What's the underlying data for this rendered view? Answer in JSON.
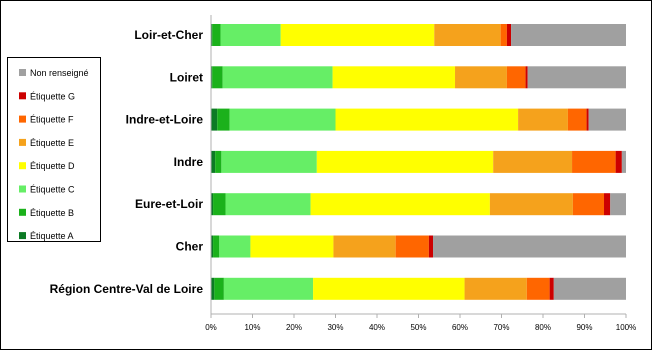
{
  "chart_data": {
    "type": "bar",
    "orientation": "horizontal",
    "stacked": true,
    "categories": [
      "Loir-et-Cher",
      "Loiret",
      "Indre-et-Loire",
      "Indre",
      "Eure-et-Loir",
      "Cher",
      "Région Centre-Val de Loire"
    ],
    "series": [
      {
        "name": "Étiquette A",
        "color": "#0c7a24",
        "values": [
          0.3,
          0.3,
          1.5,
          1.0,
          0.5,
          0.5,
          0.8
        ]
      },
      {
        "name": "Étiquette B",
        "color": "#1bb11b",
        "values": [
          2.0,
          2.5,
          3.0,
          1.5,
          3.0,
          1.5,
          2.3
        ]
      },
      {
        "name": "Étiquette C",
        "color": "#66ee66",
        "values": [
          14.5,
          26.5,
          25.5,
          23.0,
          20.5,
          7.5,
          21.5
        ]
      },
      {
        "name": "Étiquette D",
        "color": "#ffff00",
        "values": [
          37.0,
          29.5,
          44.0,
          42.5,
          43.2,
          20.0,
          36.5
        ]
      },
      {
        "name": "Étiquette E",
        "color": "#f5a21c",
        "values": [
          16.0,
          12.5,
          12.0,
          19.0,
          20.0,
          15.0,
          15.0
        ]
      },
      {
        "name": "Étiquette F",
        "color": "#ff6600",
        "values": [
          1.5,
          4.5,
          4.5,
          10.5,
          7.5,
          8.0,
          5.5
        ]
      },
      {
        "name": "Étiquette G",
        "color": "#cc0000",
        "values": [
          1.0,
          0.5,
          0.5,
          1.5,
          1.5,
          1.0,
          1.0
        ]
      },
      {
        "name": "Non renseigné",
        "color": "#a0a0a0",
        "values": [
          27.7,
          23.7,
          9.0,
          1.0,
          3.8,
          46.5,
          17.4
        ]
      }
    ],
    "xlim": [
      0,
      100
    ],
    "x_ticks": [
      "0%",
      "10%",
      "20%",
      "30%",
      "40%",
      "50%",
      "60%",
      "70%",
      "80%",
      "90%",
      "100%"
    ],
    "grid": false,
    "legend_position": "left",
    "legend_order": [
      "Non renseigné",
      "Étiquette G",
      "Étiquette F",
      "Étiquette E",
      "Étiquette D",
      "Étiquette C",
      "Étiquette B",
      "Étiquette A"
    ],
    "title": "",
    "xlabel": "",
    "ylabel": ""
  }
}
